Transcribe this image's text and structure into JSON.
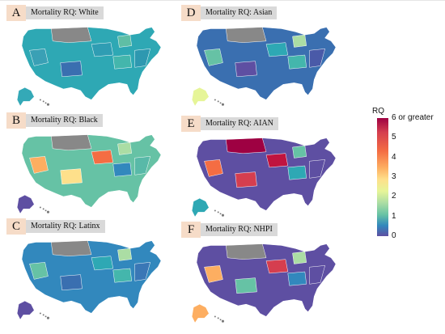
{
  "panels": [
    {
      "letter": "A",
      "title": "Mortality RQ: White",
      "colors": {
        "mainland": "#2ea8b4",
        "alaska": "#34a9b7",
        "hawaii": "#777777",
        "northern": "#888888",
        "accent1": "#3aa0b5",
        "accent2": "#2f9db3",
        "accent3": "#3a6fb0",
        "accent4": "#44b6ac",
        "accent5": "#5fbea5",
        "east": "#2e98b0"
      }
    },
    {
      "letter": "B",
      "title": "Mortality RQ: Black",
      "colors": {
        "mainland": "#66c2a5",
        "alaska": "#5e4fa2",
        "hawaii": "#777777",
        "northern": "#888888",
        "accent1": "#fdae61",
        "accent2": "#f46d43",
        "accent3": "#fee08b",
        "accent4": "#3288bd",
        "accent5": "#abdda4",
        "east": "#58b9a8"
      }
    },
    {
      "letter": "C",
      "title": "Mortality RQ: Latinx",
      "colors": {
        "mainland": "#3288bd",
        "alaska": "#5e4fa2",
        "hawaii": "#777777",
        "northern": "#888888",
        "accent1": "#66c2a5",
        "accent2": "#2ea8b4",
        "accent3": "#3a6fb0",
        "accent4": "#44b6ac",
        "accent5": "#abdda4",
        "east": "#3a77b6"
      }
    },
    {
      "letter": "D",
      "title": "Mortality RQ: Asian",
      "colors": {
        "mainland": "#3a6fb0",
        "alaska": "#e6f598",
        "hawaii": "#777777",
        "northern": "#888888",
        "accent1": "#66c2a5",
        "accent2": "#2ea8b4",
        "accent3": "#5e4fa2",
        "accent4": "#44b6ac",
        "accent5": "#abdda4",
        "east": "#4a5aa8"
      }
    },
    {
      "letter": "E",
      "title": "Mortality RQ: AIAN",
      "colors": {
        "mainland": "#5e4fa2",
        "alaska": "#2ea8b4",
        "hawaii": "#777777",
        "northern": "#9e0142",
        "accent1": "#f46d43",
        "accent2": "#c0143f",
        "accent3": "#d53e4f",
        "accent4": "#2ea8b4",
        "accent5": "#66c2a5",
        "east": "#5e4fa2"
      }
    },
    {
      "letter": "F",
      "title": "Mortality RQ: NHPI",
      "colors": {
        "mainland": "#5e4fa2",
        "alaska": "#fdae61",
        "hawaii": "#777777",
        "northern": "#888888",
        "accent1": "#fdae61",
        "accent2": "#d53e4f",
        "accent3": "#66c2a5",
        "accent4": "#3288bd",
        "accent5": "#abdda4",
        "east": "#5e4fa2"
      }
    }
  ],
  "legend": {
    "title": "RQ",
    "ticks": [
      "0",
      "1",
      "2",
      "3",
      "4",
      "5",
      "6"
    ],
    "top_label": "or greater",
    "min": 0,
    "max": 6
  }
}
